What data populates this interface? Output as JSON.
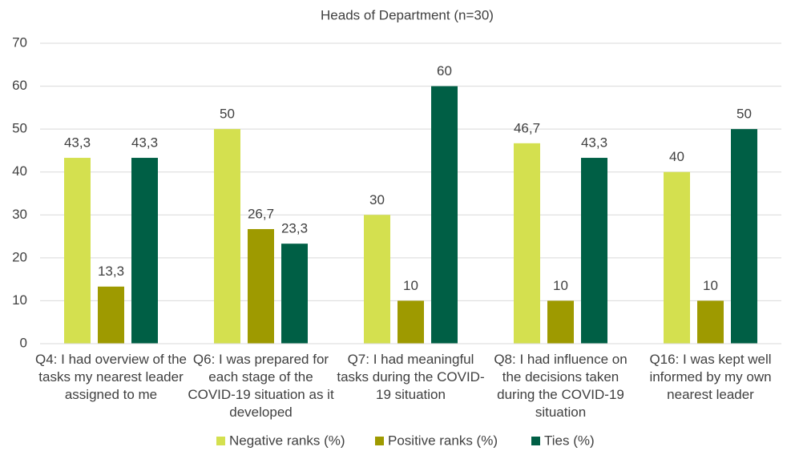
{
  "chart_data": {
    "type": "bar",
    "title": "Heads of Department (n=30)",
    "categories": [
      "Q4: I had overview of the tasks my nearest leader assigned to me",
      "Q6: I was prepared for each stage of the COVID-19 situation as it developed",
      "Q7: I had meaningful tasks during the COVID-19 situation",
      "Q8: I had influence on the decisions taken during the COVID-19 situation",
      "Q16: I was kept well informed by my own nearest leader"
    ],
    "series": [
      {
        "name": "Negative ranks (%)",
        "color": "#d4e04f",
        "values": [
          43.3,
          50,
          30,
          46.7,
          40
        ],
        "value_labels": [
          "43,3",
          "50",
          "30",
          "46,7",
          "40"
        ]
      },
      {
        "name": "Positive ranks (%)",
        "color": "#9e9a00",
        "values": [
          13.3,
          26.7,
          10,
          10,
          10
        ],
        "value_labels": [
          "13,3",
          "26,7",
          "10",
          "10",
          "10"
        ]
      },
      {
        "name": "Ties (%)",
        "color": "#005f45",
        "values": [
          43.3,
          23.3,
          60,
          43.3,
          50
        ],
        "value_labels": [
          "43,3",
          "23,3",
          "60",
          "43,3",
          "50"
        ]
      }
    ],
    "ylim": [
      0,
      70
    ],
    "yticks": [
      0,
      10,
      20,
      30,
      40,
      50,
      60,
      70
    ],
    "grid": true,
    "legend": "bottom"
  }
}
